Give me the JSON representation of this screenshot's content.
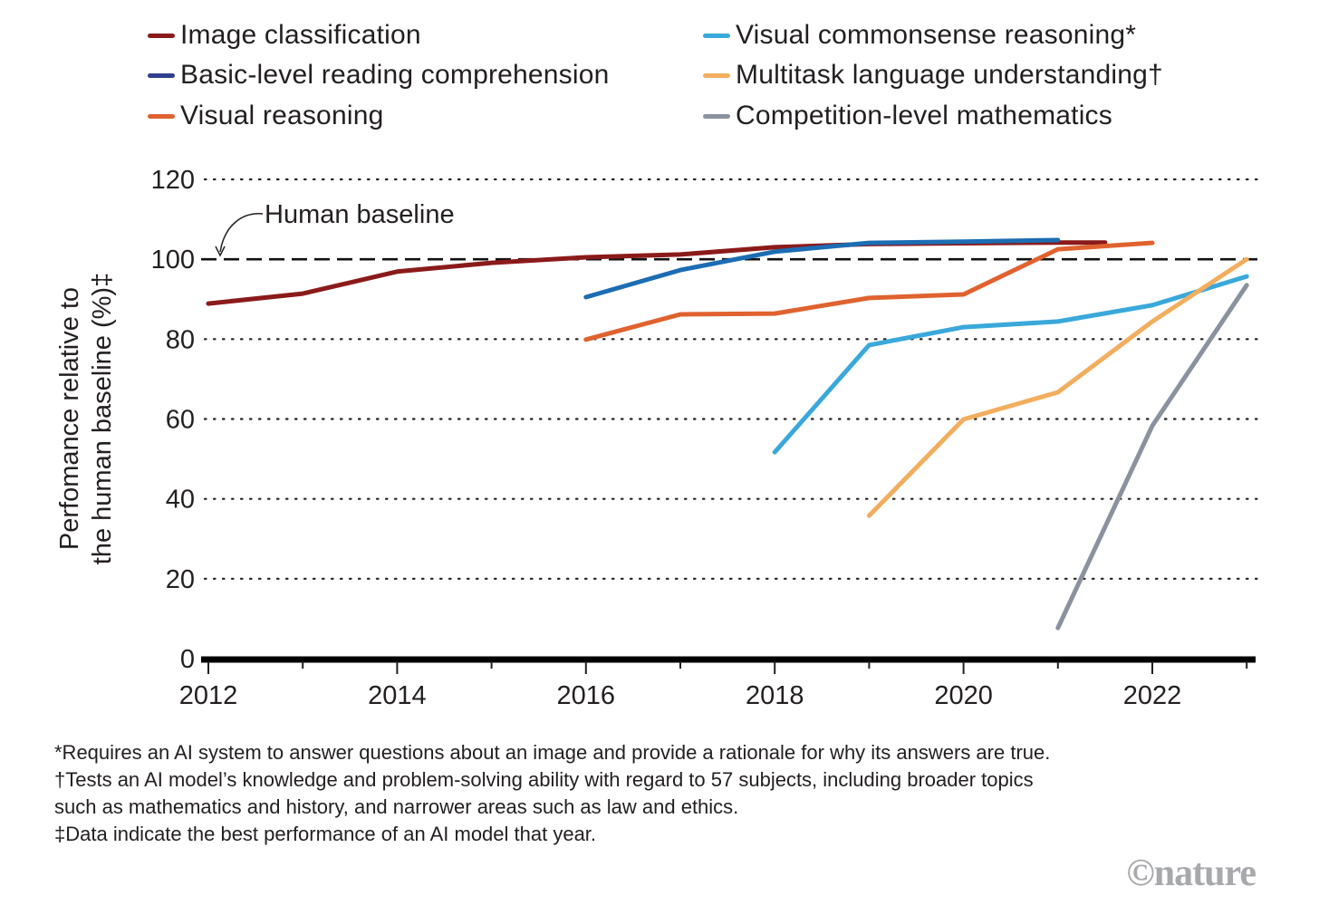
{
  "chart_data": {
    "type": "line",
    "title": "",
    "xlabel": "",
    "ylabel": "Perfomance relative to the human baseline (%)‡",
    "ylabel_lines": [
      "Perfomance relative to",
      "the human baseline (%)‡"
    ],
    "xlim": [
      2012,
      2023
    ],
    "ylim": [
      0,
      120
    ],
    "xticks_major": [
      2012,
      2014,
      2016,
      2018,
      2020,
      2022
    ],
    "xticks_minor": [
      2013,
      2015,
      2017,
      2019,
      2021,
      2023
    ],
    "xtick_labels": [
      "2012",
      "2014",
      "2016",
      "2018",
      "2020",
      "2022"
    ],
    "yticks": [
      0,
      20,
      40,
      60,
      80,
      100,
      120
    ],
    "ytick_labels": [
      "0",
      "20",
      "40",
      "60",
      "80",
      "100",
      "120"
    ],
    "grid": "horizontal dotted",
    "legend_placement": "top",
    "baseline": {
      "value": 100,
      "label": "Human baseline",
      "style": "dashed"
    },
    "series": [
      {
        "name": "Image classification",
        "color": "#8b1a1a",
        "legend_color": "#8b1a1a",
        "x": [
          2012,
          2013,
          2014,
          2015,
          2016,
          2017,
          2018,
          2019,
          2020,
          2021,
          2021.5
        ],
        "values": [
          88.9,
          91.4,
          96.9,
          99.1,
          100.5,
          101.2,
          103.0,
          103.8,
          104.0,
          104.2,
          104.2
        ]
      },
      {
        "name": "Basic-level reading comprehension",
        "color": "#1c6db3",
        "legend_color": "#2f3f8f",
        "x": [
          2016,
          2017,
          2018,
          2019,
          2020,
          2021
        ],
        "values": [
          90.5,
          97.3,
          101.9,
          104.1,
          104.4,
          104.8
        ]
      },
      {
        "name": "Visual reasoning",
        "color": "#e0622f",
        "legend_color": "#e0622f",
        "x": [
          2016,
          2017,
          2018,
          2019,
          2020,
          2021,
          2022
        ],
        "values": [
          79.9,
          86.2,
          86.4,
          90.3,
          91.2,
          102.5,
          104.1
        ]
      },
      {
        "name": "Visual commonsense reasoning*",
        "color": "#3aa8da",
        "legend_color": "#3aa8da",
        "x": [
          2018,
          2019,
          2020,
          2021,
          2022,
          2023
        ],
        "values": [
          51.7,
          78.5,
          83.0,
          84.4,
          88.5,
          95.7
        ]
      },
      {
        "name": "Multitask language understanding†",
        "color": "#f2ae5e",
        "legend_color": "#f2ae5e",
        "x": [
          2019,
          2020,
          2021,
          2022,
          2023
        ],
        "values": [
          35.8,
          59.9,
          66.7,
          84.4,
          100.0
        ]
      },
      {
        "name": "Competition-level mathematics",
        "color": "#8a929e",
        "legend_color": "#8a929e",
        "x": [
          2021,
          2022,
          2023
        ],
        "values": [
          7.7,
          58.3,
          93.5
        ]
      }
    ]
  },
  "legend": {
    "items": [
      {
        "label": "Image classification",
        "color": "#8b1a1a"
      },
      {
        "label": "Basic-level reading comprehension",
        "color": "#2f3f8f"
      },
      {
        "label": "Visual reasoning",
        "color": "#e0622f"
      },
      {
        "label": "Visual commonsense reasoning*",
        "color": "#3aa8da"
      },
      {
        "label": "Multitask language understanding†",
        "color": "#f2ae5e"
      },
      {
        "label": "Competition-level mathematics",
        "color": "#8a929e"
      }
    ]
  },
  "footnotes": [
    "*Requires an AI system to answer questions about an image and provide a rationale for why its answers are true.",
    "†Tests an AI model’s knowledge and problem-solving ability with regard to 57 subjects, including broader topics",
    "such as mathematics and history, and narrower areas such as law and ethics.",
    "‡Data indicate the best performance of an AI model that year."
  ],
  "credit": "©nature"
}
